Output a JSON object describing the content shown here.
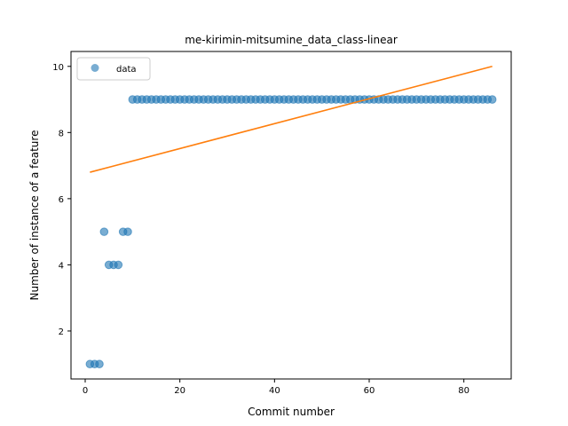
{
  "chart_data": {
    "type": "scatter",
    "title": "me-kirimin-mitsumine_data_class-linear",
    "xlabel": "Commit number",
    "ylabel": "Number of instance of a feature",
    "xlim": [
      -3,
      90
    ],
    "ylim": [
      0.55,
      10.45
    ],
    "xticks": [
      0,
      20,
      40,
      60,
      80
    ],
    "yticks": [
      2,
      4,
      6,
      8,
      10
    ],
    "grid": false,
    "legend_position": "top-left",
    "series": [
      {
        "name": "data",
        "kind": "scatter",
        "color": "#1f77b4",
        "x": [
          1,
          2,
          3,
          4,
          5,
          6,
          7,
          8,
          9,
          10,
          11,
          12,
          13,
          14,
          15,
          16,
          17,
          18,
          19,
          20,
          21,
          22,
          23,
          24,
          25,
          26,
          27,
          28,
          29,
          30,
          31,
          32,
          33,
          34,
          35,
          36,
          37,
          38,
          39,
          40,
          41,
          42,
          43,
          44,
          45,
          46,
          47,
          48,
          49,
          50,
          51,
          52,
          53,
          54,
          55,
          56,
          57,
          58,
          59,
          60,
          61,
          62,
          63,
          64,
          65,
          66,
          67,
          68,
          69,
          70,
          71,
          72,
          73,
          74,
          75,
          76,
          77,
          78,
          79,
          80,
          81,
          82,
          83,
          84,
          85,
          86
        ],
        "y": [
          1,
          1,
          1,
          5,
          4,
          4,
          4,
          5,
          5,
          9,
          9,
          9,
          9,
          9,
          9,
          9,
          9,
          9,
          9,
          9,
          9,
          9,
          9,
          9,
          9,
          9,
          9,
          9,
          9,
          9,
          9,
          9,
          9,
          9,
          9,
          9,
          9,
          9,
          9,
          9,
          9,
          9,
          9,
          9,
          9,
          9,
          9,
          9,
          9,
          9,
          9,
          9,
          9,
          9,
          9,
          9,
          9,
          9,
          9,
          9,
          9,
          9,
          9,
          9,
          9,
          9,
          9,
          9,
          9,
          9,
          9,
          9,
          9,
          9,
          9,
          9,
          9,
          9,
          9,
          9,
          9,
          9,
          9,
          9,
          9,
          9
        ]
      },
      {
        "kind": "line",
        "color": "#ff7f0e",
        "x": [
          1,
          86
        ],
        "y": [
          6.8,
          10.0
        ]
      }
    ]
  }
}
